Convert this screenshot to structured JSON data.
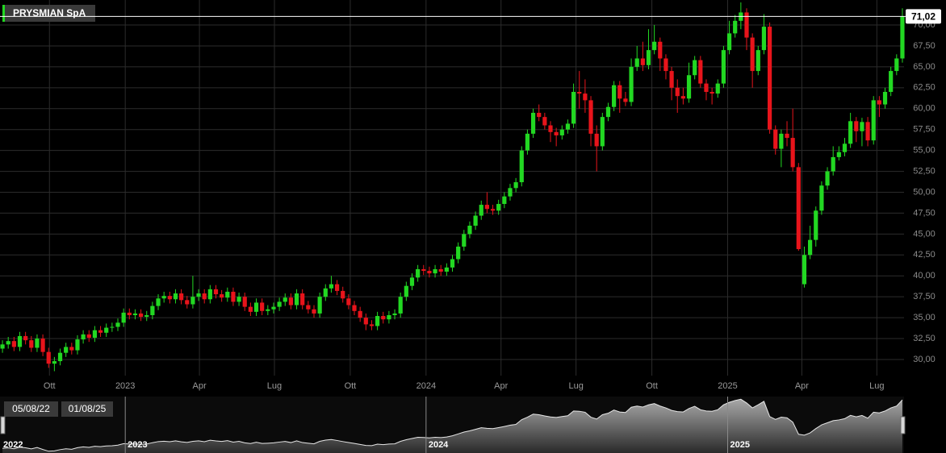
{
  "chart_data": {
    "type": "candlestick",
    "title": "PRYSMIAN SpA",
    "x": [
      "2022-08-05",
      "2022-08-12",
      "2022-08-19",
      "2022-08-26",
      "2022-09-02",
      "2022-09-09",
      "2022-09-16",
      "2022-09-23",
      "2022-09-30",
      "2022-10-07",
      "2022-10-14",
      "2022-10-21",
      "2022-10-28",
      "2022-11-04",
      "2022-11-11",
      "2022-11-18",
      "2022-11-25",
      "2022-12-02",
      "2022-12-09",
      "2022-12-16",
      "2022-12-23",
      "2022-12-30",
      "2023-01-06",
      "2023-01-13",
      "2023-01-20",
      "2023-01-27",
      "2023-02-03",
      "2023-02-10",
      "2023-02-17",
      "2023-02-24",
      "2023-03-03",
      "2023-03-10",
      "2023-03-17",
      "2023-03-24",
      "2023-03-31",
      "2023-04-07",
      "2023-04-14",
      "2023-04-21",
      "2023-04-28",
      "2023-05-05",
      "2023-05-12",
      "2023-05-19",
      "2023-05-26",
      "2023-06-02",
      "2023-06-09",
      "2023-06-16",
      "2023-06-23",
      "2023-06-30",
      "2023-07-07",
      "2023-07-14",
      "2023-07-21",
      "2023-07-28",
      "2023-08-04",
      "2023-08-11",
      "2023-08-18",
      "2023-08-25",
      "2023-09-01",
      "2023-09-08",
      "2023-09-15",
      "2023-09-22",
      "2023-09-29",
      "2023-10-06",
      "2023-10-13",
      "2023-10-20",
      "2023-10-27",
      "2023-11-03",
      "2023-11-10",
      "2023-11-17",
      "2023-11-24",
      "2023-12-01",
      "2023-12-08",
      "2023-12-15",
      "2023-12-22",
      "2023-12-29",
      "2024-01-05",
      "2024-01-12",
      "2024-01-19",
      "2024-01-26",
      "2024-02-02",
      "2024-02-09",
      "2024-02-16",
      "2024-02-23",
      "2024-03-01",
      "2024-03-08",
      "2024-03-15",
      "2024-03-22",
      "2024-03-29",
      "2024-04-05",
      "2024-04-12",
      "2024-04-19",
      "2024-04-26",
      "2024-05-03",
      "2024-05-10",
      "2024-05-17",
      "2024-05-24",
      "2024-05-31",
      "2024-06-07",
      "2024-06-14",
      "2024-06-21",
      "2024-06-28",
      "2024-07-05",
      "2024-07-12",
      "2024-07-19",
      "2024-07-26",
      "2024-08-02",
      "2024-08-09",
      "2024-08-16",
      "2024-08-23",
      "2024-08-30",
      "2024-09-06",
      "2024-09-13",
      "2024-09-20",
      "2024-09-27",
      "2024-10-04",
      "2024-10-11",
      "2024-10-18",
      "2024-10-25",
      "2024-11-01",
      "2024-11-08",
      "2024-11-15",
      "2024-11-22",
      "2024-11-29",
      "2024-12-06",
      "2024-12-13",
      "2024-12-20",
      "2024-12-27",
      "2025-01-03",
      "2025-01-10",
      "2025-01-17",
      "2025-01-24",
      "2025-01-31",
      "2025-02-07",
      "2025-02-14",
      "2025-02-21",
      "2025-02-28",
      "2025-03-07",
      "2025-03-14",
      "2025-03-21",
      "2025-03-28",
      "2025-04-04",
      "2025-04-11",
      "2025-04-18",
      "2025-04-25",
      "2025-05-02",
      "2025-05-09",
      "2025-05-16",
      "2025-05-23",
      "2025-05-30",
      "2025-06-06",
      "2025-06-13",
      "2025-06-20",
      "2025-06-27",
      "2025-07-04",
      "2025-07-11",
      "2025-07-18",
      "2025-07-25",
      "2025-08-01"
    ],
    "open": [
      31.3,
      31.8,
      32.2,
      31.5,
      32.8,
      32.3,
      31.4,
      32.5,
      30.9,
      29.5,
      29.8,
      30.8,
      31.5,
      31.1,
      32.4,
      33.0,
      32.6,
      33.5,
      33.2,
      33.8,
      33.9,
      34.4,
      35.6,
      35.3,
      35.5,
      35.1,
      35.3,
      36.4,
      37.3,
      37.6,
      37.2,
      37.9,
      37.1,
      36.6,
      37.5,
      37.9,
      37.2,
      38.4,
      37.8,
      37.4,
      38.1,
      36.9,
      37.5,
      36.3,
      35.7,
      36.8,
      35.8,
      36.0,
      36.3,
      36.9,
      37.4,
      36.5,
      37.9,
      36.5,
      36.0,
      35.5,
      37.5,
      38.5,
      39.0,
      38.2,
      37.3,
      36.5,
      35.8,
      35.0,
      34.2,
      34.0,
      35.2,
      34.8,
      35.3,
      35.5,
      37.5,
      38.8,
      39.8,
      40.8,
      40.6,
      40.3,
      40.8,
      40.5,
      41.0,
      42.0,
      43.5,
      45.0,
      46.0,
      47.2,
      48.5,
      48.0,
      47.8,
      48.6,
      49.5,
      50.5,
      51.2,
      55.0,
      57.0,
      59.5,
      59.0,
      58.0,
      57.2,
      56.8,
      57.5,
      58.2,
      62.0,
      61.8,
      61.0,
      57.0,
      55.5,
      59.0,
      60.2,
      62.8,
      61.2,
      60.8,
      65.0,
      66.0,
      65.2,
      67.0,
      68.0,
      66.0,
      64.5,
      62.5,
      61.5,
      61.2,
      64.0,
      65.8,
      63.0,
      62.0,
      61.8,
      63.0,
      67.0,
      69.0,
      70.5,
      71.5,
      68.5,
      64.5,
      67.0,
      69.8,
      57.5,
      55.2,
      57.0,
      56.5,
      53.0,
      39.0,
      42.5,
      44.3,
      47.8,
      50.8,
      52.5,
      54.2,
      54.8,
      55.8,
      58.5,
      57.3,
      58.4,
      56.2,
      61.0,
      60.5,
      62.0,
      64.5,
      66.0
    ],
    "high": [
      32.3,
      32.7,
      32.7,
      33.3,
      33.3,
      32.8,
      33.0,
      33.0,
      31.4,
      30.3,
      31.3,
      32.0,
      32.0,
      32.9,
      33.5,
      33.5,
      34.0,
      34.0,
      34.3,
      34.4,
      34.9,
      36.1,
      36.1,
      36.0,
      36.0,
      35.8,
      36.9,
      37.8,
      38.1,
      38.1,
      38.4,
      38.4,
      37.6,
      40.0,
      38.4,
      38.4,
      38.9,
      38.9,
      38.3,
      38.6,
      38.6,
      38.0,
      38.0,
      36.8,
      37.3,
      37.3,
      36.5,
      36.8,
      37.4,
      37.9,
      37.9,
      38.4,
      38.4,
      37.0,
      36.5,
      38.0,
      39.0,
      40.0,
      39.5,
      38.7,
      37.8,
      37.0,
      36.3,
      35.5,
      34.7,
      35.7,
      35.7,
      35.8,
      36.0,
      38.0,
      39.3,
      40.3,
      41.3,
      41.3,
      41.1,
      41.3,
      41.3,
      41.5,
      42.5,
      44.0,
      45.5,
      46.5,
      47.7,
      49.0,
      50.0,
      48.5,
      49.1,
      50.0,
      51.0,
      51.7,
      55.5,
      57.5,
      60.0,
      60.5,
      59.5,
      58.5,
      57.7,
      58.0,
      58.7,
      63.0,
      64.5,
      63.5,
      61.5,
      58.0,
      59.5,
      60.7,
      63.3,
      63.3,
      62.0,
      66.0,
      67.5,
      68.0,
      69.5,
      70.0,
      68.5,
      66.5,
      65.0,
      63.5,
      62.5,
      65.5,
      66.3,
      66.3,
      63.5,
      62.5,
      63.5,
      67.5,
      70.5,
      71.2,
      72.7,
      72.0,
      69.0,
      67.5,
      71.3,
      70.3,
      58.0,
      57.5,
      58.5,
      60.0,
      53.5,
      43.5,
      46.0,
      48.3,
      51.3,
      53.0,
      55.5,
      55.5,
      56.5,
      59.5,
      59.0,
      58.9,
      59.0,
      61.5,
      61.5,
      62.5,
      65.0,
      66.5,
      72.0
    ],
    "low": [
      30.8,
      31.3,
      31.0,
      31.0,
      31.8,
      30.9,
      30.9,
      30.4,
      29.0,
      28.6,
      29.3,
      30.3,
      30.6,
      30.6,
      31.9,
      32.1,
      32.1,
      32.7,
      32.7,
      33.3,
      33.4,
      33.9,
      34.8,
      34.8,
      34.6,
      34.6,
      34.8,
      35.9,
      36.8,
      36.7,
      36.7,
      36.6,
      36.1,
      36.1,
      37.0,
      36.7,
      36.7,
      37.3,
      36.9,
      36.9,
      36.4,
      36.4,
      35.8,
      35.2,
      35.2,
      35.3,
      35.3,
      35.5,
      35.8,
      36.4,
      36.0,
      36.0,
      36.0,
      35.5,
      35.0,
      35.0,
      37.0,
      38.0,
      37.7,
      36.8,
      36.0,
      35.3,
      34.5,
      33.5,
      33.5,
      33.5,
      34.3,
      34.3,
      34.8,
      35.0,
      37.0,
      38.3,
      39.3,
      40.1,
      39.8,
      39.8,
      40.0,
      40.0,
      40.5,
      41.5,
      43.0,
      44.5,
      45.5,
      46.7,
      47.5,
      47.3,
      47.3,
      48.1,
      49.0,
      50.0,
      50.7,
      54.5,
      56.5,
      58.5,
      57.5,
      56.0,
      55.5,
      56.3,
      57.0,
      57.7,
      60.0,
      59.5,
      55.5,
      52.5,
      55.0,
      58.5,
      59.7,
      59.5,
      60.3,
      60.3,
      64.5,
      64.5,
      64.7,
      66.5,
      64.5,
      63.5,
      61.0,
      59.5,
      60.5,
      60.7,
      63.5,
      62.5,
      61.0,
      60.5,
      61.3,
      62.5,
      66.5,
      68.5,
      69.5,
      67.0,
      62.5,
      64.0,
      66.5,
      57.0,
      54.5,
      53.0,
      55.5,
      52.5,
      43.0,
      38.6,
      42.0,
      43.5,
      47.3,
      50.3,
      52.0,
      53.8,
      54.3,
      55.3,
      56.0,
      55.5,
      55.5,
      55.7,
      59.0,
      60.0,
      61.5,
      64.0,
      65.5
    ],
    "close": [
      31.8,
      32.2,
      31.5,
      32.8,
      32.3,
      31.4,
      32.5,
      30.9,
      29.5,
      29.8,
      30.8,
      31.5,
      31.1,
      32.4,
      33.0,
      32.6,
      33.5,
      33.2,
      33.8,
      33.9,
      34.4,
      35.6,
      35.3,
      35.5,
      35.1,
      35.3,
      36.4,
      37.3,
      37.6,
      37.2,
      37.9,
      37.1,
      36.6,
      37.5,
      37.9,
      37.2,
      38.4,
      37.8,
      37.4,
      38.1,
      36.9,
      37.5,
      36.3,
      35.7,
      36.8,
      35.8,
      36.0,
      36.3,
      36.9,
      37.4,
      36.5,
      37.9,
      36.5,
      36.0,
      35.5,
      37.5,
      38.5,
      39.0,
      38.2,
      37.3,
      36.5,
      35.8,
      35.0,
      34.2,
      34.0,
      35.2,
      34.8,
      35.3,
      35.5,
      37.5,
      38.8,
      39.8,
      40.8,
      40.6,
      40.3,
      40.8,
      40.5,
      41.0,
      42.0,
      43.5,
      45.0,
      46.0,
      47.2,
      48.5,
      48.0,
      47.8,
      48.6,
      49.5,
      50.5,
      51.2,
      55.0,
      57.0,
      59.5,
      59.0,
      58.0,
      57.2,
      56.8,
      57.5,
      58.2,
      62.0,
      61.8,
      61.0,
      57.0,
      55.5,
      59.0,
      60.2,
      62.8,
      61.2,
      60.8,
      65.0,
      66.0,
      65.2,
      67.0,
      68.0,
      66.0,
      64.5,
      62.5,
      61.5,
      61.2,
      64.0,
      65.8,
      63.0,
      62.0,
      61.8,
      63.0,
      67.0,
      69.0,
      70.5,
      71.5,
      68.5,
      64.5,
      67.0,
      69.8,
      57.5,
      55.2,
      57.0,
      56.5,
      53.0,
      43.2,
      42.5,
      44.3,
      47.8,
      50.8,
      52.5,
      54.2,
      54.8,
      55.8,
      58.5,
      57.3,
      58.4,
      56.2,
      61.0,
      60.5,
      62.0,
      64.5,
      66.0,
      71.02
    ],
    "up_color": "#22d822",
    "down_color": "#e8141b",
    "xlim": [
      "2022-08-02",
      "2025-08-03"
    ],
    "xticks": [
      {
        "value": "2022-10-01",
        "label": "Ott"
      },
      {
        "value": "2023-01-01",
        "label": "2023"
      },
      {
        "value": "2023-04-01",
        "label": "Apr"
      },
      {
        "value": "2023-07-01",
        "label": "Lug"
      },
      {
        "value": "2023-10-01",
        "label": "Ott"
      },
      {
        "value": "2024-01-01",
        "label": "2024"
      },
      {
        "value": "2024-04-01",
        "label": "Apr"
      },
      {
        "value": "2024-07-01",
        "label": "Lug"
      },
      {
        "value": "2024-10-01",
        "label": "Ott"
      },
      {
        "value": "2025-01-01",
        "label": "2025"
      },
      {
        "value": "2025-04-01",
        "label": "Apr"
      },
      {
        "value": "2025-07-01",
        "label": "Lug"
      }
    ],
    "ylim": [
      28.07,
      72.99
    ],
    "yticks": [
      {
        "value": 30,
        "label": "30,00"
      },
      {
        "value": 32.5,
        "label": "32,50"
      },
      {
        "value": 35,
        "label": "35,00"
      },
      {
        "value": 37.5,
        "label": "37,50"
      },
      {
        "value": 40,
        "label": "40,00"
      },
      {
        "value": 42.5,
        "label": "42,50"
      },
      {
        "value": 45,
        "label": "45,00"
      },
      {
        "value": 47.5,
        "label": "47,50"
      },
      {
        "value": 50,
        "label": "50,00"
      },
      {
        "value": 52.5,
        "label": "52,50"
      },
      {
        "value": 55,
        "label": "55,00"
      },
      {
        "value": 57.5,
        "label": "57,50"
      },
      {
        "value": 60,
        "label": "60,00"
      },
      {
        "value": 62.5,
        "label": "62,50"
      },
      {
        "value": 65,
        "label": "65,00"
      },
      {
        "value": 67.5,
        "label": "67,50"
      },
      {
        "value": 70,
        "label": "70,00"
      }
    ],
    "grid": true,
    "price_line": {
      "value": 71.02,
      "label": "71,02"
    },
    "navigator": {
      "start_label": "2022",
      "ticks": [
        {
          "value": "2023-01-01",
          "label": "2023"
        },
        {
          "value": "2024-01-01",
          "label": "2024"
        },
        {
          "value": "2025-01-01",
          "label": "2025"
        }
      ],
      "range_labels": [
        "05/08/22",
        "01/08/25"
      ]
    }
  }
}
